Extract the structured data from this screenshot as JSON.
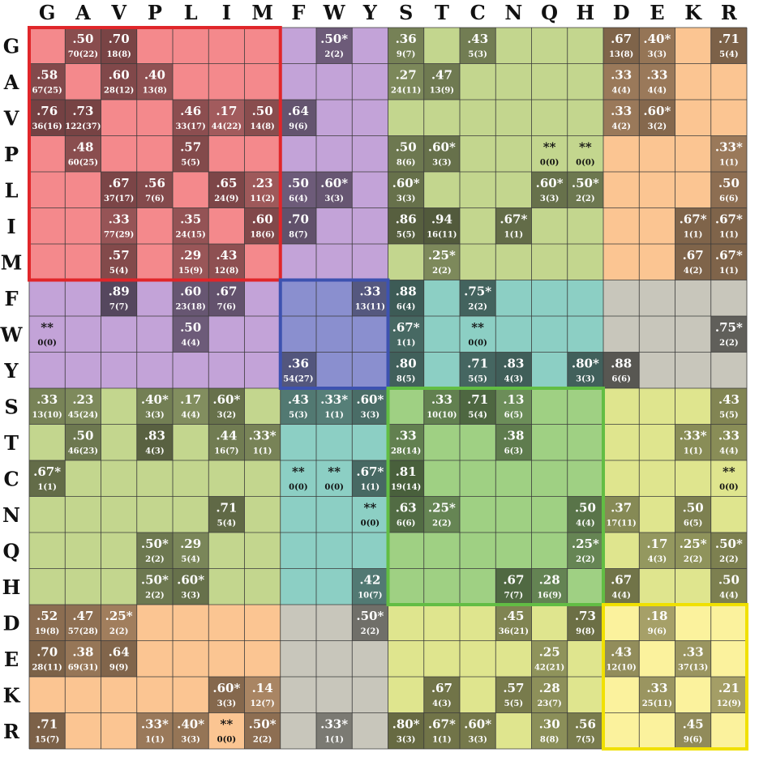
{
  "chart_data": {
    "type": "heatmap",
    "title": "",
    "xlabel": "",
    "ylabel": "",
    "x_categories": [
      "G",
      "A",
      "V",
      "P",
      "L",
      "I",
      "M",
      "F",
      "W",
      "Y",
      "S",
      "T",
      "C",
      "N",
      "Q",
      "H",
      "D",
      "E",
      "K",
      "R"
    ],
    "y_categories": [
      "G",
      "A",
      "V",
      "P",
      "L",
      "I",
      "M",
      "F",
      "W",
      "Y",
      "S",
      "T",
      "C",
      "N",
      "Q",
      "H",
      "D",
      "E",
      "K",
      "R"
    ],
    "groups": [
      {
        "members": [
          "G",
          "A",
          "V",
          "P",
          "L",
          "I",
          "M"
        ],
        "color": "#f4898c",
        "frame_color": "#e0262a"
      },
      {
        "members": [
          "F",
          "W",
          "Y"
        ],
        "color": "#8a8fcf",
        "frame_color": "#3d52b0"
      },
      {
        "members": [
          "S",
          "T",
          "C",
          "N",
          "Q",
          "H"
        ],
        "color": "#9fd083",
        "frame_color": "#62bd44"
      },
      {
        "members": [
          "D",
          "E",
          "K",
          "R"
        ],
        "color": "#fbf29d",
        "frame_color": "#f0e000"
      }
    ],
    "cells": [
      {
        "row": "G",
        "col": "A",
        "value": ".50",
        "count": "70(22)"
      },
      {
        "row": "G",
        "col": "V",
        "value": ".70",
        "count": "18(8)"
      },
      {
        "row": "G",
        "col": "W",
        "value": ".50*",
        "count": "2(2)"
      },
      {
        "row": "G",
        "col": "S",
        "value": ".36",
        "count": "9(7)"
      },
      {
        "row": "G",
        "col": "C",
        "value": ".43",
        "count": "5(3)"
      },
      {
        "row": "G",
        "col": "D",
        "value": ".67",
        "count": "13(8)"
      },
      {
        "row": "G",
        "col": "E",
        "value": ".40*",
        "count": "3(3)"
      },
      {
        "row": "G",
        "col": "R",
        "value": ".71",
        "count": "5(4)"
      },
      {
        "row": "A",
        "col": "G",
        "value": ".58",
        "count": "67(25)"
      },
      {
        "row": "A",
        "col": "V",
        "value": ".60",
        "count": "28(12)"
      },
      {
        "row": "A",
        "col": "P",
        "value": ".40",
        "count": "13(8)"
      },
      {
        "row": "A",
        "col": "S",
        "value": ".27",
        "count": "24(11)"
      },
      {
        "row": "A",
        "col": "T",
        "value": ".47",
        "count": "13(9)"
      },
      {
        "row": "A",
        "col": "D",
        "value": ".33",
        "count": "4(4)"
      },
      {
        "row": "A",
        "col": "E",
        "value": ".33",
        "count": "4(4)"
      },
      {
        "row": "V",
        "col": "G",
        "value": ".76",
        "count": "36(16)"
      },
      {
        "row": "V",
        "col": "A",
        "value": ".73",
        "count": "122(37)"
      },
      {
        "row": "V",
        "col": "L",
        "value": ".46",
        "count": "33(17)"
      },
      {
        "row": "V",
        "col": "I",
        "value": ".17",
        "count": "44(22)"
      },
      {
        "row": "V",
        "col": "M",
        "value": ".50",
        "count": "14(8)"
      },
      {
        "row": "V",
        "col": "F",
        "value": ".64",
        "count": "9(6)"
      },
      {
        "row": "V",
        "col": "D",
        "value": ".33",
        "count": "4(2)"
      },
      {
        "row": "V",
        "col": "E",
        "value": ".60*",
        "count": "3(2)"
      },
      {
        "row": "P",
        "col": "A",
        "value": ".48",
        "count": "60(25)"
      },
      {
        "row": "P",
        "col": "L",
        "value": ".57",
        "count": "5(5)"
      },
      {
        "row": "P",
        "col": "S",
        "value": ".50",
        "count": "8(6)"
      },
      {
        "row": "P",
        "col": "T",
        "value": ".60*",
        "count": "3(3)"
      },
      {
        "row": "P",
        "col": "Q",
        "value": "**",
        "count": "0(0)"
      },
      {
        "row": "P",
        "col": "H",
        "value": "**",
        "count": "0(0)"
      },
      {
        "row": "P",
        "col": "R",
        "value": ".33*",
        "count": "1(1)"
      },
      {
        "row": "L",
        "col": "V",
        "value": ".67",
        "count": "37(17)"
      },
      {
        "row": "L",
        "col": "P",
        "value": ".56",
        "count": "7(6)"
      },
      {
        "row": "L",
        "col": "I",
        "value": ".65",
        "count": "24(9)"
      },
      {
        "row": "L",
        "col": "M",
        "value": ".23",
        "count": "11(2)"
      },
      {
        "row": "L",
        "col": "F",
        "value": ".50",
        "count": "6(4)"
      },
      {
        "row": "L",
        "col": "W",
        "value": ".60*",
        "count": "3(3)"
      },
      {
        "row": "L",
        "col": "S",
        "value": ".60*",
        "count": "3(3)"
      },
      {
        "row": "L",
        "col": "Q",
        "value": ".60*",
        "count": "3(3)"
      },
      {
        "row": "L",
        "col": "H",
        "value": ".50*",
        "count": "2(2)"
      },
      {
        "row": "L",
        "col": "R",
        "value": ".50",
        "count": "6(6)"
      },
      {
        "row": "I",
        "col": "V",
        "value": ".33",
        "count": "77(29)"
      },
      {
        "row": "I",
        "col": "L",
        "value": ".35",
        "count": "24(15)"
      },
      {
        "row": "I",
        "col": "M",
        "value": ".60",
        "count": "18(6)"
      },
      {
        "row": "I",
        "col": "F",
        "value": ".70",
        "count": "8(7)"
      },
      {
        "row": "I",
        "col": "S",
        "value": ".86",
        "count": "5(5)"
      },
      {
        "row": "I",
        "col": "T",
        "value": ".94",
        "count": "16(11)"
      },
      {
        "row": "I",
        "col": "N",
        "value": ".67*",
        "count": "1(1)"
      },
      {
        "row": "I",
        "col": "K",
        "value": ".67*",
        "count": "1(1)"
      },
      {
        "row": "I",
        "col": "R",
        "value": ".67*",
        "count": "1(1)"
      },
      {
        "row": "M",
        "col": "V",
        "value": ".57",
        "count": "5(4)"
      },
      {
        "row": "M",
        "col": "L",
        "value": ".29",
        "count": "15(9)"
      },
      {
        "row": "M",
        "col": "I",
        "value": ".43",
        "count": "12(8)"
      },
      {
        "row": "M",
        "col": "T",
        "value": ".25*",
        "count": "2(2)"
      },
      {
        "row": "M",
        "col": "K",
        "value": ".67",
        "count": "4(2)"
      },
      {
        "row": "M",
        "col": "R",
        "value": ".67*",
        "count": "1(1)"
      },
      {
        "row": "F",
        "col": "V",
        "value": ".89",
        "count": "7(7)"
      },
      {
        "row": "F",
        "col": "L",
        "value": ".60",
        "count": "23(18)"
      },
      {
        "row": "F",
        "col": "I",
        "value": ".67",
        "count": "7(6)"
      },
      {
        "row": "F",
        "col": "Y",
        "value": ".33",
        "count": "13(11)"
      },
      {
        "row": "F",
        "col": "S",
        "value": ".88",
        "count": "6(4)"
      },
      {
        "row": "F",
        "col": "C",
        "value": ".75*",
        "count": "2(2)"
      },
      {
        "row": "W",
        "col": "G",
        "value": "**",
        "count": "0(0)"
      },
      {
        "row": "W",
        "col": "L",
        "value": ".50",
        "count": "4(4)"
      },
      {
        "row": "W",
        "col": "S",
        "value": ".67*",
        "count": "1(1)"
      },
      {
        "row": "W",
        "col": "C",
        "value": "**",
        "count": "0(0)"
      },
      {
        "row": "W",
        "col": "R",
        "value": ".75*",
        "count": "2(2)"
      },
      {
        "row": "Y",
        "col": "F",
        "value": ".36",
        "count": "54(27)"
      },
      {
        "row": "Y",
        "col": "S",
        "value": ".80",
        "count": "8(5)"
      },
      {
        "row": "Y",
        "col": "C",
        "value": ".71",
        "count": "5(5)"
      },
      {
        "row": "Y",
        "col": "N",
        "value": ".83",
        "count": "4(3)"
      },
      {
        "row": "Y",
        "col": "H",
        "value": ".80*",
        "count": "3(3)"
      },
      {
        "row": "Y",
        "col": "D",
        "value": ".88",
        "count": "6(6)"
      },
      {
        "row": "S",
        "col": "G",
        "value": ".33",
        "count": "13(10)"
      },
      {
        "row": "S",
        "col": "A",
        "value": ".23",
        "count": "45(24)"
      },
      {
        "row": "S",
        "col": "P",
        "value": ".40*",
        "count": "3(3)"
      },
      {
        "row": "S",
        "col": "L",
        "value": ".17",
        "count": "4(4)"
      },
      {
        "row": "S",
        "col": "I",
        "value": ".60*",
        "count": "3(2)"
      },
      {
        "row": "S",
        "col": "F",
        "value": ".43",
        "count": "5(3)"
      },
      {
        "row": "S",
        "col": "W",
        "value": ".33*",
        "count": "1(1)"
      },
      {
        "row": "S",
        "col": "Y",
        "value": ".60*",
        "count": "3(3)"
      },
      {
        "row": "S",
        "col": "T",
        "value": ".33",
        "count": "10(10)"
      },
      {
        "row": "S",
        "col": "C",
        "value": ".71",
        "count": "5(4)"
      },
      {
        "row": "S",
        "col": "N",
        "value": ".13",
        "count": "6(5)"
      },
      {
        "row": "S",
        "col": "R",
        "value": ".43",
        "count": "5(5)"
      },
      {
        "row": "T",
        "col": "A",
        "value": ".50",
        "count": "46(23)"
      },
      {
        "row": "T",
        "col": "P",
        "value": ".83",
        "count": "4(3)"
      },
      {
        "row": "T",
        "col": "I",
        "value": ".44",
        "count": "16(7)"
      },
      {
        "row": "T",
        "col": "M",
        "value": ".33*",
        "count": "1(1)"
      },
      {
        "row": "T",
        "col": "S",
        "value": ".33",
        "count": "28(14)"
      },
      {
        "row": "T",
        "col": "N",
        "value": ".38",
        "count": "6(3)"
      },
      {
        "row": "T",
        "col": "K",
        "value": ".33*",
        "count": "1(1)"
      },
      {
        "row": "T",
        "col": "R",
        "value": ".33",
        "count": "4(4)"
      },
      {
        "row": "C",
        "col": "G",
        "value": ".67*",
        "count": "1(1)"
      },
      {
        "row": "C",
        "col": "F",
        "value": "**",
        "count": "0(0)"
      },
      {
        "row": "C",
        "col": "W",
        "value": "**",
        "count": "0(0)"
      },
      {
        "row": "C",
        "col": "Y",
        "value": ".67*",
        "count": "1(1)"
      },
      {
        "row": "C",
        "col": "S",
        "value": ".81",
        "count": "19(14)"
      },
      {
        "row": "C",
        "col": "R",
        "value": "**",
        "count": "0(0)"
      },
      {
        "row": "N",
        "col": "I",
        "value": ".71",
        "count": "5(4)"
      },
      {
        "row": "N",
        "col": "Y",
        "value": "**",
        "count": "0(0)"
      },
      {
        "row": "N",
        "col": "S",
        "value": ".63",
        "count": "6(6)"
      },
      {
        "row": "N",
        "col": "T",
        "value": ".25*",
        "count": "2(2)"
      },
      {
        "row": "N",
        "col": "H",
        "value": ".50",
        "count": "4(4)"
      },
      {
        "row": "N",
        "col": "D",
        "value": ".37",
        "count": "17(11)"
      },
      {
        "row": "N",
        "col": "K",
        "value": ".50",
        "count": "6(5)"
      },
      {
        "row": "Q",
        "col": "P",
        "value": ".50*",
        "count": "2(2)"
      },
      {
        "row": "Q",
        "col": "L",
        "value": ".29",
        "count": "5(4)"
      },
      {
        "row": "Q",
        "col": "H",
        "value": ".25*",
        "count": "2(2)"
      },
      {
        "row": "Q",
        "col": "E",
        "value": ".17",
        "count": "4(3)"
      },
      {
        "row": "Q",
        "col": "K",
        "value": ".25*",
        "count": "2(2)"
      },
      {
        "row": "Q",
        "col": "R",
        "value": ".50*",
        "count": "2(2)"
      },
      {
        "row": "H",
        "col": "P",
        "value": ".50*",
        "count": "2(2)"
      },
      {
        "row": "H",
        "col": "L",
        "value": ".60*",
        "count": "3(3)"
      },
      {
        "row": "H",
        "col": "Y",
        "value": ".42",
        "count": "10(7)"
      },
      {
        "row": "H",
        "col": "N",
        "value": ".67",
        "count": "7(7)"
      },
      {
        "row": "H",
        "col": "Q",
        "value": ".28",
        "count": "16(9)"
      },
      {
        "row": "H",
        "col": "D",
        "value": ".67",
        "count": "4(4)"
      },
      {
        "row": "H",
        "col": "R",
        "value": ".50",
        "count": "4(4)"
      },
      {
        "row": "D",
        "col": "G",
        "value": ".52",
        "count": "19(8)"
      },
      {
        "row": "D",
        "col": "A",
        "value": ".47",
        "count": "57(28)"
      },
      {
        "row": "D",
        "col": "V",
        "value": ".25*",
        "count": "2(2)"
      },
      {
        "row": "D",
        "col": "Y",
        "value": ".50*",
        "count": "2(2)"
      },
      {
        "row": "D",
        "col": "N",
        "value": ".45",
        "count": "36(21)"
      },
      {
        "row": "D",
        "col": "H",
        "value": ".73",
        "count": "9(8)"
      },
      {
        "row": "D",
        "col": "E",
        "value": ".18",
        "count": "9(6)"
      },
      {
        "row": "E",
        "col": "G",
        "value": ".70",
        "count": "28(11)"
      },
      {
        "row": "E",
        "col": "A",
        "value": ".38",
        "count": "69(31)"
      },
      {
        "row": "E",
        "col": "V",
        "value": ".64",
        "count": "9(9)"
      },
      {
        "row": "E",
        "col": "Q",
        "value": ".25",
        "count": "42(21)"
      },
      {
        "row": "E",
        "col": "D",
        "value": ".43",
        "count": "12(10)"
      },
      {
        "row": "E",
        "col": "K",
        "value": ".33",
        "count": "37(13)"
      },
      {
        "row": "K",
        "col": "I",
        "value": ".60*",
        "count": "3(3)"
      },
      {
        "row": "K",
        "col": "M",
        "value": ".14",
        "count": "12(7)"
      },
      {
        "row": "K",
        "col": "T",
        "value": ".67",
        "count": "4(3)"
      },
      {
        "row": "K",
        "col": "N",
        "value": ".57",
        "count": "5(5)"
      },
      {
        "row": "K",
        "col": "Q",
        "value": ".28",
        "count": "23(7)"
      },
      {
        "row": "K",
        "col": "E",
        "value": ".33",
        "count": "25(11)"
      },
      {
        "row": "K",
        "col": "R",
        "value": ".21",
        "count": "12(9)"
      },
      {
        "row": "R",
        "col": "G",
        "value": ".71",
        "count": "15(7)"
      },
      {
        "row": "R",
        "col": "P",
        "value": ".33*",
        "count": "1(1)"
      },
      {
        "row": "R",
        "col": "L",
        "value": ".40*",
        "count": "3(3)"
      },
      {
        "row": "R",
        "col": "I",
        "value": "**",
        "count": "0(0)"
      },
      {
        "row": "R",
        "col": "M",
        "value": ".50*",
        "count": "2(2)"
      },
      {
        "row": "R",
        "col": "W",
        "value": ".33*",
        "count": "1(1)"
      },
      {
        "row": "R",
        "col": "S",
        "value": ".80*",
        "count": "3(3)"
      },
      {
        "row": "R",
        "col": "T",
        "value": ".67*",
        "count": "1(1)"
      },
      {
        "row": "R",
        "col": "C",
        "value": ".60*",
        "count": "3(3)"
      },
      {
        "row": "R",
        "col": "Q",
        "value": ".30",
        "count": "8(8)"
      },
      {
        "row": "R",
        "col": "H",
        "value": ".56",
        "count": "7(5)"
      },
      {
        "row": "R",
        "col": "K",
        "value": ".45",
        "count": "9(6)"
      }
    ]
  }
}
